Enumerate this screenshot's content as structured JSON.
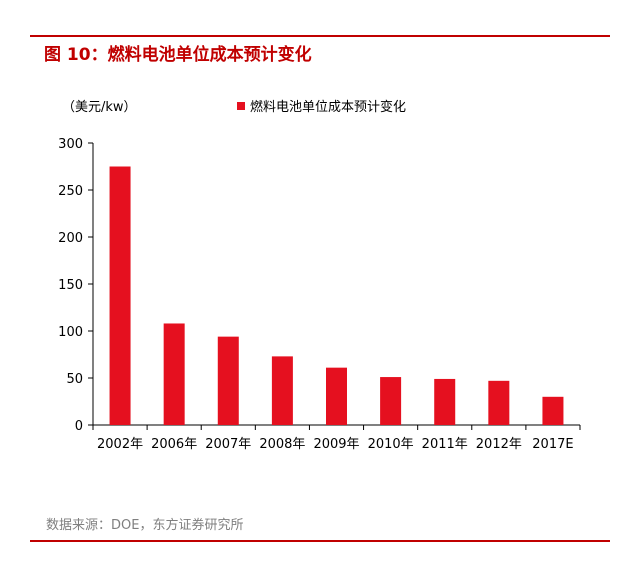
{
  "figure": {
    "title": "图 10：燃料电池单位成本预计变化",
    "source": "数据来源：DOE，东方证券研究所"
  },
  "colors": {
    "accent": "#c00000",
    "bar": "#e5101f",
    "axis": "#000000",
    "source_text": "#7f7f7f"
  },
  "chart_data": {
    "type": "bar",
    "ylabel": "（美元/kw）",
    "xlabel": "",
    "categories": [
      "2002年",
      "2006年",
      "2007年",
      "2008年",
      "2009年",
      "2010年",
      "2011年",
      "2012年",
      "2017E"
    ],
    "series": [
      {
        "name": "燃料电池单位成本预计变化",
        "values": [
          275,
          108,
          94,
          73,
          61,
          51,
          49,
          47,
          30
        ]
      }
    ],
    "ylim": [
      0,
      300
    ],
    "yticks": [
      0,
      50,
      100,
      150,
      200,
      250,
      300
    ],
    "grid": false,
    "legend_position": "top-center"
  }
}
